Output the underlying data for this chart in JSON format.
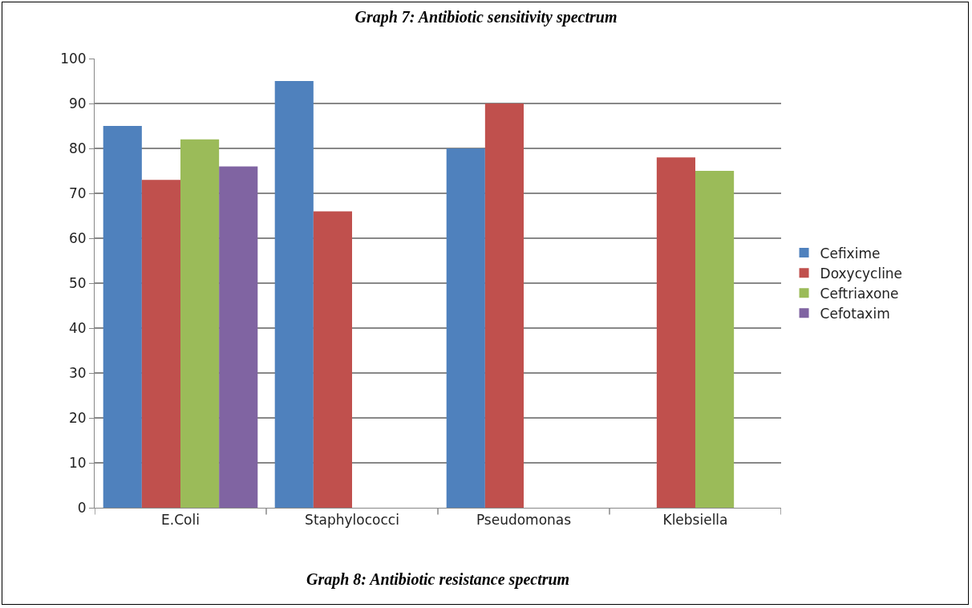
{
  "chart_data": {
    "type": "bar",
    "title": "Graph 7: Antibiotic sensitivity spectrum",
    "categories": [
      "E.Coli",
      "Staphylococci",
      "Pseudomonas",
      "Klebsiella"
    ],
    "series": [
      {
        "name": "Cefixime",
        "color": "#4f81bd",
        "values": [
          85,
          95,
          80,
          null
        ]
      },
      {
        "name": "Doxycycline",
        "color": "#c0504d",
        "values": [
          73,
          66,
          90,
          78
        ]
      },
      {
        "name": "Ceftriaxone",
        "color": "#9bbb59",
        "values": [
          82,
          null,
          null,
          75
        ]
      },
      {
        "name": "Cefotaxim",
        "color": "#8064a2",
        "values": [
          76,
          null,
          null,
          null
        ]
      }
    ],
    "ylim": [
      0,
      100
    ],
    "yticks": [
      0,
      10,
      20,
      30,
      40,
      50,
      60,
      70,
      80,
      90,
      100
    ],
    "grid": "y",
    "legend": "right",
    "annotations": [
      "Graph 8: Antibiotic resistance spectrum"
    ]
  }
}
